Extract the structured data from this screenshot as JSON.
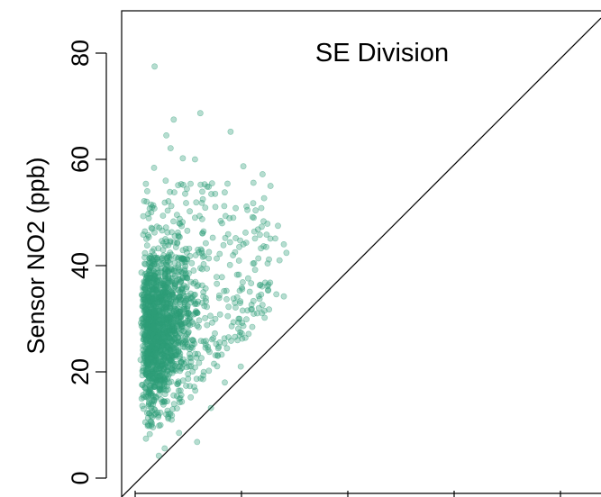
{
  "chart_data": {
    "type": "scatter",
    "title": "SE Division",
    "xlabel": "",
    "ylabel": "Sensor NO2 (ppb)",
    "ylim": [
      0,
      85
    ],
    "yticks": [
      0,
      20,
      40,
      60,
      80
    ],
    "y_tick_labels": [
      "0",
      "20",
      "40",
      "60",
      "80"
    ],
    "xlim": [
      0,
      85
    ],
    "reference_line": "y = x",
    "grid": false,
    "colors": {
      "points": "#2e9e78",
      "point_opacity": 0.35,
      "line": "#000000"
    },
    "series": [
      {
        "points": [
          [
            6.2,
            77.5
          ],
          [
            9.8,
            67.5
          ],
          [
            14.8,
            68.7
          ],
          [
            20.5,
            65.2
          ],
          [
            8.4,
            64.5
          ],
          [
            9.2,
            62.1
          ],
          [
            11.5,
            60.2
          ],
          [
            13.8,
            60.0
          ],
          [
            6.1,
            58.4
          ],
          [
            22.9,
            58.7
          ],
          [
            26.5,
            57.2
          ],
          [
            24.8,
            55.6
          ],
          [
            28.0,
            55.0
          ],
          [
            17.6,
            53.5
          ],
          [
            26.8,
            52.7
          ],
          [
            19.3,
            51.2
          ],
          [
            21.0,
            49.0
          ],
          [
            29.4,
            47.5
          ],
          [
            23.3,
            46.2
          ],
          [
            26.0,
            45.8
          ],
          [
            28.9,
            45.1
          ],
          [
            30.5,
            44.0
          ],
          [
            27.2,
            43.5
          ],
          [
            31.0,
            42.4
          ],
          [
            29.7,
            41.0
          ],
          [
            25.1,
            39.2
          ],
          [
            23.8,
            37.6
          ],
          [
            27.0,
            36.8
          ],
          [
            30.5,
            34.2
          ],
          [
            29.1,
            34.6
          ],
          [
            21.3,
            33.0
          ],
          [
            18.5,
            30.8
          ],
          [
            20.7,
            28.6
          ],
          [
            17.0,
            26.1
          ],
          [
            15.0,
            22.6
          ],
          [
            12.5,
            18.7
          ],
          [
            13.0,
            15.2
          ],
          [
            9.4,
            11.0
          ],
          [
            14.2,
            6.8
          ],
          [
            7.0,
            4.2
          ],
          [
            8.1,
            5.6
          ],
          [
            10.8,
            8.5
          ],
          [
            16.8,
            13.2
          ],
          [
            19.4,
            18.0
          ],
          [
            18.1,
            23.0
          ],
          [
            22.4,
            21.0
          ],
          [
            16.4,
            20.2
          ],
          [
            20.1,
            26.5
          ],
          [
            22.0,
            30.0
          ],
          [
            24.5,
            31.8
          ]
        ]
      }
    ]
  }
}
